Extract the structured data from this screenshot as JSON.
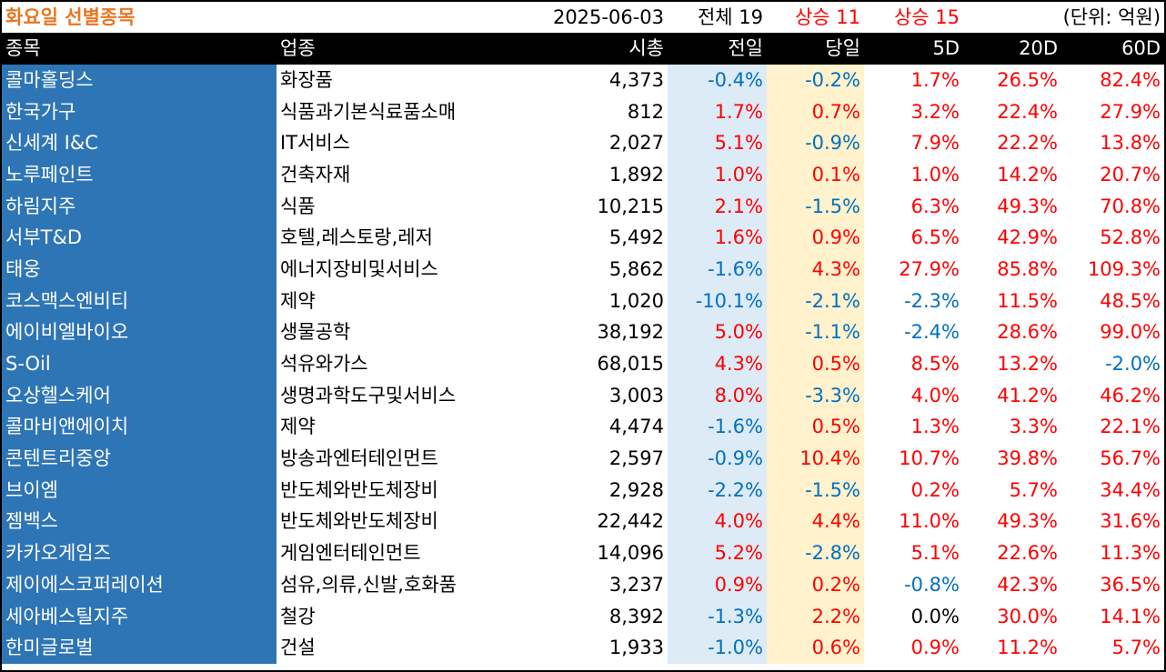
{
  "header": {
    "title": "화요일 선별종목",
    "date": "2025-06-03",
    "total": "전체 19",
    "up_prev": "상승 11",
    "up_5d": "상승 15",
    "unit": "(단위: 억원)"
  },
  "columns": [
    "종목",
    "업종",
    "시총",
    "전일",
    "당일",
    "5D",
    "20D",
    "60D"
  ],
  "rows": [
    {
      "name": "콜마홀딩스",
      "sector": "화장품",
      "cap": "4,373",
      "prev": "-0.4%",
      "today": "-0.2%",
      "d5": "1.7%",
      "d20": "26.5%",
      "d60": "82.4%"
    },
    {
      "name": "한국가구",
      "sector": "식품과기본식료품소매",
      "cap": "812",
      "prev": "1.7%",
      "today": "0.7%",
      "d5": "3.2%",
      "d20": "22.4%",
      "d60": "27.9%"
    },
    {
      "name": "신세계 I&C",
      "sector": "IT서비스",
      "cap": "2,027",
      "prev": "5.1%",
      "today": "-0.9%",
      "d5": "7.9%",
      "d20": "22.2%",
      "d60": "13.8%"
    },
    {
      "name": "노루페인트",
      "sector": "건축자재",
      "cap": "1,892",
      "prev": "1.0%",
      "today": "0.1%",
      "d5": "1.0%",
      "d20": "14.2%",
      "d60": "20.7%"
    },
    {
      "name": "하림지주",
      "sector": "식품",
      "cap": "10,215",
      "prev": "2.1%",
      "today": "-1.5%",
      "d5": "6.3%",
      "d20": "49.3%",
      "d60": "70.8%"
    },
    {
      "name": "서부T&D",
      "sector": "호텔,레스토랑,레저",
      "cap": "5,492",
      "prev": "1.6%",
      "today": "0.9%",
      "d5": "6.5%",
      "d20": "42.9%",
      "d60": "52.8%"
    },
    {
      "name": "태웅",
      "sector": "에너지장비및서비스",
      "cap": "5,862",
      "prev": "-1.6%",
      "today": "4.3%",
      "d5": "27.9%",
      "d20": "85.8%",
      "d60": "109.3%"
    },
    {
      "name": "코스맥스엔비티",
      "sector": "제약",
      "cap": "1,020",
      "prev": "-10.1%",
      "today": "-2.1%",
      "d5": "-2.3%",
      "d20": "11.5%",
      "d60": "48.5%"
    },
    {
      "name": "에이비엘바이오",
      "sector": "생물공학",
      "cap": "38,192",
      "prev": "5.0%",
      "today": "-1.1%",
      "d5": "-2.4%",
      "d20": "28.6%",
      "d60": "99.0%"
    },
    {
      "name": "S-Oil",
      "sector": "석유와가스",
      "cap": "68,015",
      "prev": "4.3%",
      "today": "0.5%",
      "d5": "8.5%",
      "d20": "13.2%",
      "d60": "-2.0%"
    },
    {
      "name": "오상헬스케어",
      "sector": "생명과학도구및서비스",
      "cap": "3,003",
      "prev": "8.0%",
      "today": "-3.3%",
      "d5": "4.0%",
      "d20": "41.2%",
      "d60": "46.2%"
    },
    {
      "name": "콜마비앤에이치",
      "sector": "제약",
      "cap": "4,474",
      "prev": "-1.6%",
      "today": "0.5%",
      "d5": "1.3%",
      "d20": "3.3%",
      "d60": "22.1%"
    },
    {
      "name": "콘텐트리중앙",
      "sector": "방송과엔터테인먼트",
      "cap": "2,597",
      "prev": "-0.9%",
      "today": "10.4%",
      "d5": "10.7%",
      "d20": "39.8%",
      "d60": "56.7%"
    },
    {
      "name": "브이엠",
      "sector": "반도체와반도체장비",
      "cap": "2,928",
      "prev": "-2.2%",
      "today": "-1.5%",
      "d5": "0.2%",
      "d20": "5.7%",
      "d60": "34.4%"
    },
    {
      "name": "젬백스",
      "sector": "반도체와반도체장비",
      "cap": "22,442",
      "prev": "4.0%",
      "today": "4.4%",
      "d5": "11.0%",
      "d20": "49.3%",
      "d60": "31.6%"
    },
    {
      "name": "카카오게임즈",
      "sector": "게임엔터테인먼트",
      "cap": "14,096",
      "prev": "5.2%",
      "today": "-2.8%",
      "d5": "5.1%",
      "d20": "22.6%",
      "d60": "11.3%"
    },
    {
      "name": "제이에스코퍼레이션",
      "sector": "섬유,의류,신발,호화품",
      "cap": "3,237",
      "prev": "0.9%",
      "today": "0.2%",
      "d5": "-0.8%",
      "d20": "42.3%",
      "d60": "36.5%"
    },
    {
      "name": "세아베스틸지주",
      "sector": "철강",
      "cap": "8,392",
      "prev": "-1.3%",
      "today": "2.2%",
      "d5": "0.0%",
      "d20": "30.0%",
      "d60": "14.1%"
    },
    {
      "name": "한미글로벌",
      "sector": "건설",
      "cap": "1,933",
      "prev": "-1.0%",
      "today": "0.6%",
      "d5": "0.9%",
      "d20": "11.2%",
      "d60": "5.7%"
    }
  ],
  "colors": {
    "title": "#e87722",
    "name_bg": "#2e75b6",
    "prev_bg": "#ddebf7",
    "today_bg": "#fff2cc",
    "positive": "#ff0000",
    "negative": "#0070c0",
    "header_bg": "#000000"
  }
}
